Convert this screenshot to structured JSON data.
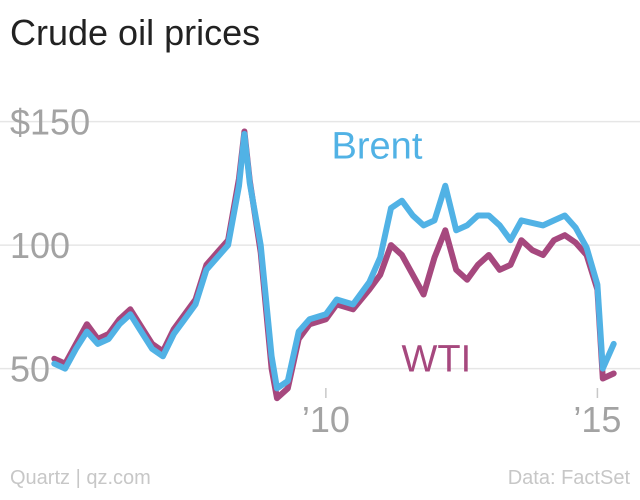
{
  "chart_data": {
    "type": "line",
    "title": "Crude oil prices",
    "xlabel": "",
    "ylabel": "",
    "y_ticks": [
      {
        "value": 150,
        "label": "$150"
      },
      {
        "value": 100,
        "label": "100"
      },
      {
        "value": 50,
        "label": "50"
      }
    ],
    "x_ticks": [
      {
        "value": 2010,
        "label": "’10"
      },
      {
        "value": 2015,
        "label": "’15"
      }
    ],
    "xlim": [
      2004.0,
      2015.6
    ],
    "ylim": [
      30,
      162
    ],
    "grid": "horizontal",
    "legend": "inline labels",
    "series": [
      {
        "name": "Brent",
        "color": "#51b2e5",
        "label_at": {
          "x": 2009.0,
          "y": 135
        },
        "x": [
          2005.0,
          2005.2,
          2005.4,
          2005.6,
          2005.8,
          2006.0,
          2006.2,
          2006.4,
          2006.6,
          2006.8,
          2007.0,
          2007.2,
          2007.4,
          2007.6,
          2007.8,
          2008.0,
          2008.2,
          2008.4,
          2008.5,
          2008.6,
          2008.8,
          2009.0,
          2009.1,
          2009.3,
          2009.5,
          2009.7,
          2010.0,
          2010.2,
          2010.5,
          2010.8,
          2011.0,
          2011.2,
          2011.4,
          2011.6,
          2011.8,
          2012.0,
          2012.2,
          2012.4,
          2012.6,
          2012.8,
          2013.0,
          2013.2,
          2013.4,
          2013.6,
          2013.8,
          2014.0,
          2014.2,
          2014.4,
          2014.6,
          2014.8,
          2015.0,
          2015.1,
          2015.3
        ],
        "values": [
          52,
          50,
          58,
          65,
          60,
          62,
          68,
          72,
          65,
          58,
          55,
          64,
          70,
          76,
          90,
          95,
          100,
          124,
          145,
          125,
          100,
          55,
          42,
          45,
          65,
          70,
          72,
          78,
          76,
          85,
          95,
          115,
          118,
          112,
          108,
          110,
          124,
          106,
          108,
          112,
          112,
          108,
          102,
          110,
          109,
          108,
          110,
          112,
          107,
          99,
          84,
          50,
          60
        ]
      },
      {
        "name": "WTI",
        "color": "#a6487e",
        "label_at": {
          "x": 2009.0,
          "y": 65
        },
        "x": [
          2005.0,
          2005.2,
          2005.4,
          2005.6,
          2005.8,
          2006.0,
          2006.2,
          2006.4,
          2006.6,
          2006.8,
          2007.0,
          2007.2,
          2007.4,
          2007.6,
          2007.8,
          2008.0,
          2008.2,
          2008.4,
          2008.5,
          2008.6,
          2008.8,
          2009.0,
          2009.1,
          2009.3,
          2009.5,
          2009.7,
          2010.0,
          2010.2,
          2010.5,
          2010.8,
          2011.0,
          2011.2,
          2011.4,
          2011.6,
          2011.8,
          2012.0,
          2012.2,
          2012.4,
          2012.6,
          2012.8,
          2013.0,
          2013.2,
          2013.4,
          2013.6,
          2013.8,
          2014.0,
          2014.2,
          2014.4,
          2014.6,
          2014.8,
          2015.0,
          2015.1,
          2015.3
        ],
        "values": [
          54,
          52,
          60,
          68,
          62,
          64,
          70,
          74,
          67,
          60,
          57,
          66,
          72,
          78,
          92,
          97,
          102,
          127,
          146,
          126,
          97,
          50,
          38,
          42,
          62,
          68,
          70,
          76,
          74,
          82,
          88,
          100,
          96,
          88,
          80,
          95,
          106,
          90,
          86,
          92,
          96,
          90,
          92,
          102,
          98,
          96,
          102,
          104,
          101,
          96,
          82,
          46,
          48
        ]
      }
    ]
  },
  "footer": {
    "source": "Quartz | qz.com",
    "credit": "Data: FactSet"
  }
}
